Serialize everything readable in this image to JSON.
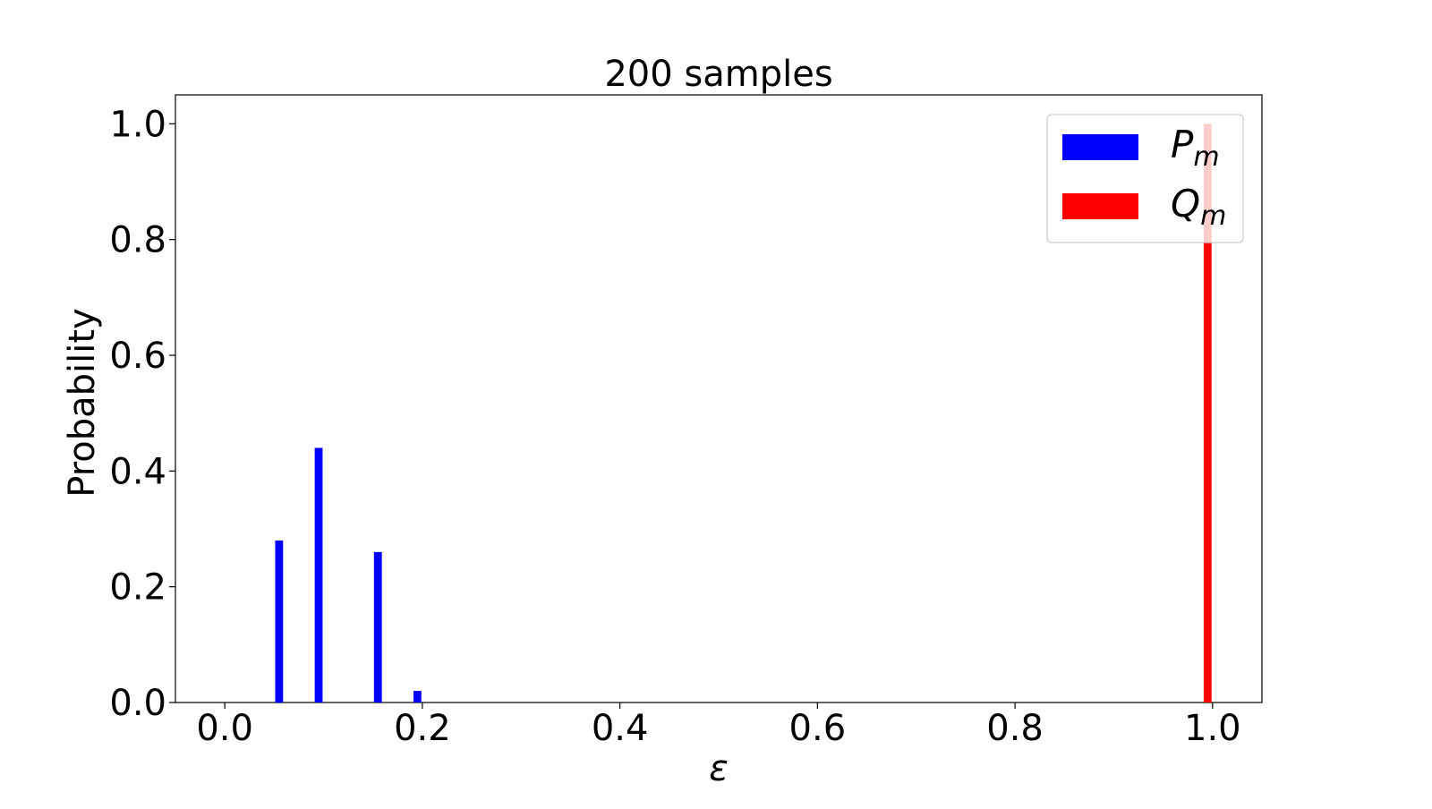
{
  "chart_data": {
    "type": "bar",
    "title": "200 samples",
    "xlabel": "ε",
    "ylabel": "Probability",
    "xlim": [
      -0.05,
      1.05
    ],
    "ylim": [
      0.0,
      1.05
    ],
    "xticks": [
      0.0,
      0.2,
      0.4,
      0.6,
      0.8,
      1.0
    ],
    "xtick_labels": [
      "0.0",
      "0.2",
      "0.4",
      "0.6",
      "0.8",
      "1.0"
    ],
    "yticks": [
      0.0,
      0.2,
      0.4,
      0.6,
      0.8,
      1.0
    ],
    "ytick_labels": [
      "0.0",
      "0.2",
      "0.4",
      "0.6",
      "0.8",
      "1.0"
    ],
    "bar_width": 0.008,
    "grid": false,
    "legend_position": "upper right",
    "series": [
      {
        "legend_main": "P",
        "legend_sub": "m",
        "color": "#0000ff",
        "x": [
          0.055,
          0.095,
          0.155,
          0.195
        ],
        "values": [
          0.28,
          0.44,
          0.26,
          0.02
        ]
      },
      {
        "legend_main": "Q",
        "legend_sub": "m",
        "color": "#ff0000",
        "x": [
          0.995
        ],
        "values": [
          1.0
        ]
      }
    ]
  }
}
